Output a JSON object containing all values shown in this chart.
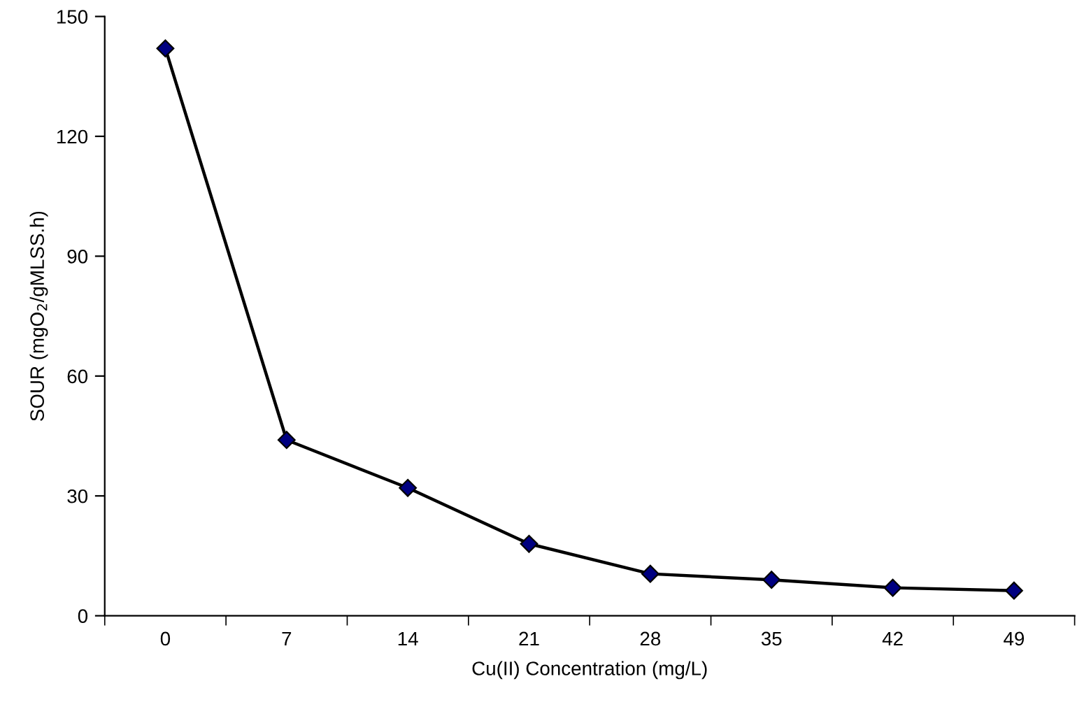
{
  "chart_data": {
    "type": "line",
    "xlabel": "Cu(II) Concentration (mg/L)",
    "ylabel": "SOUR (mgO$_{2}$/gMLSS.h)",
    "categories": [
      "0",
      "7",
      "14",
      "21",
      "28",
      "35",
      "42",
      "49"
    ],
    "series": [
      {
        "color": "#000080",
        "values": [
          142,
          44,
          32,
          18,
          10.5,
          9,
          7,
          6.3
        ]
      }
    ],
    "ylim": [
      0,
      150
    ],
    "yticks": [
      0,
      30,
      60,
      90,
      120,
      150
    ],
    "marker": "diamond",
    "line_style": "solid",
    "grid": false,
    "legend": false
  }
}
